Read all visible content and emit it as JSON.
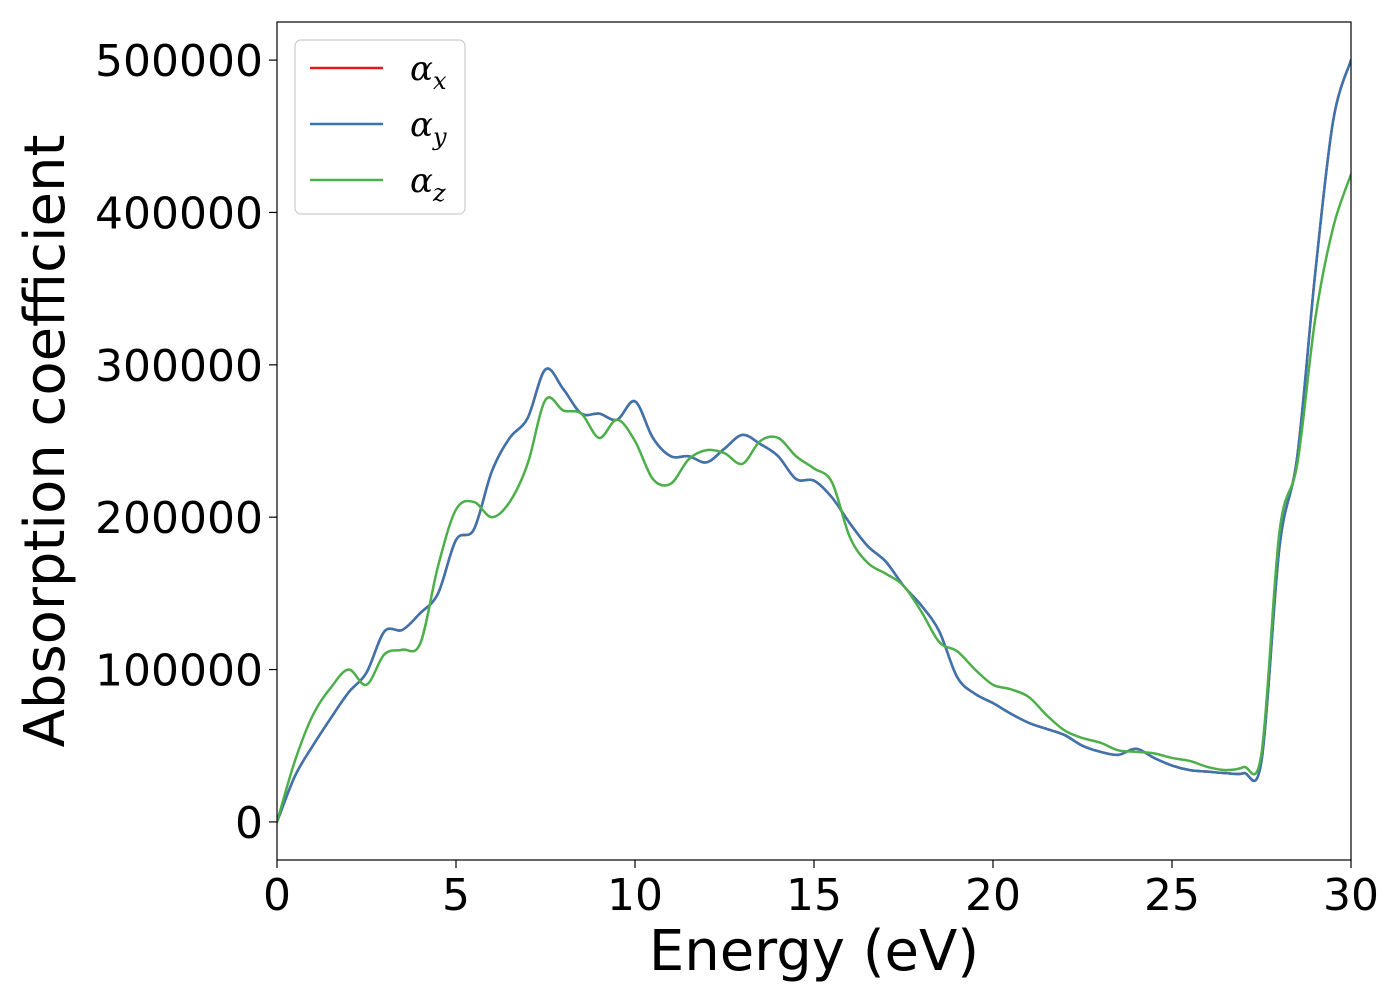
{
  "chart_data": {
    "type": "line",
    "xlabel": "Energy (eV)",
    "ylabel": "Absorption coefficient",
    "xlim": [
      0,
      30
    ],
    "ylim": [
      -25000,
      525000
    ],
    "xticks": [
      0,
      5,
      10,
      15,
      20,
      25,
      30
    ],
    "xtick_labels": [
      "0",
      "5",
      "10",
      "15",
      "20",
      "25",
      "30"
    ],
    "yticks": [
      0,
      100000,
      200000,
      300000,
      400000,
      500000
    ],
    "ytick_labels": [
      "0",
      "100000",
      "200000",
      "300000",
      "400000",
      "500000"
    ],
    "grid": false,
    "legend": "top-left",
    "series": [
      {
        "name": "αx",
        "label_base": "α",
        "label_sub": "x",
        "color": "#e41a1c",
        "x": [
          0,
          0.5,
          1,
          1.5,
          2,
          2.5,
          3,
          3.5,
          4,
          4.5,
          5,
          5.5,
          6,
          6.5,
          7,
          7.5,
          8,
          8.5,
          9,
          9.5,
          10,
          10.5,
          11,
          11.5,
          12,
          12.5,
          13,
          13.5,
          14,
          14.5,
          15,
          15.5,
          16,
          16.5,
          17,
          17.5,
          18,
          18.5,
          19,
          19.5,
          20,
          20.5,
          21,
          21.5,
          22,
          22.5,
          23,
          23.5,
          24,
          24.5,
          25,
          25.5,
          26,
          26.5,
          27,
          27.5,
          28,
          28.5,
          29,
          29.5,
          30
        ],
        "y": [
          0,
          30000,
          50000,
          68000,
          85000,
          98000,
          125000,
          126000,
          137000,
          150000,
          185000,
          192000,
          230000,
          252000,
          265000,
          297000,
          284000,
          268000,
          268000,
          264000,
          276000,
          252000,
          240000,
          240000,
          236000,
          245000,
          254000,
          248000,
          240000,
          225000,
          224000,
          213000,
          196000,
          181000,
          171000,
          155000,
          142000,
          125000,
          95000,
          84000,
          78000,
          71000,
          65000,
          61000,
          57000,
          50000,
          46000,
          44000,
          48000,
          42000,
          37000,
          34000,
          33000,
          32000,
          32000,
          40000,
          180000,
          240000,
          360000,
          460000,
          500000
        ]
      },
      {
        "name": "αy",
        "label_base": "α",
        "label_sub": "y",
        "color": "#3b75af",
        "x": [
          0,
          0.5,
          1,
          1.5,
          2,
          2.5,
          3,
          3.5,
          4,
          4.5,
          5,
          5.5,
          6,
          6.5,
          7,
          7.5,
          8,
          8.5,
          9,
          9.5,
          10,
          10.5,
          11,
          11.5,
          12,
          12.5,
          13,
          13.5,
          14,
          14.5,
          15,
          15.5,
          16,
          16.5,
          17,
          17.5,
          18,
          18.5,
          19,
          19.5,
          20,
          20.5,
          21,
          21.5,
          22,
          22.5,
          23,
          23.5,
          24,
          24.5,
          25,
          25.5,
          26,
          26.5,
          27,
          27.5,
          28,
          28.5,
          29,
          29.5,
          30
        ],
        "y": [
          0,
          30000,
          50000,
          68000,
          85000,
          98000,
          125000,
          126000,
          137000,
          150000,
          185000,
          192000,
          230000,
          252000,
          265000,
          297000,
          284000,
          268000,
          268000,
          264000,
          276000,
          252000,
          240000,
          240000,
          236000,
          245000,
          254000,
          248000,
          240000,
          225000,
          224000,
          213000,
          196000,
          181000,
          171000,
          155000,
          142000,
          125000,
          95000,
          84000,
          78000,
          71000,
          65000,
          61000,
          57000,
          50000,
          46000,
          44000,
          48000,
          42000,
          37000,
          34000,
          33000,
          32000,
          32000,
          40000,
          180000,
          240000,
          360000,
          460000,
          500000
        ]
      },
      {
        "name": "αz",
        "label_base": "α",
        "label_sub": "z",
        "color": "#4daf4a",
        "x": [
          0,
          0.5,
          1,
          1.5,
          2,
          2.5,
          3,
          3.5,
          4,
          4.5,
          5,
          5.5,
          6,
          6.5,
          7,
          7.5,
          8,
          8.5,
          9,
          9.5,
          10,
          10.5,
          11,
          11.5,
          12,
          12.5,
          13,
          13.5,
          14,
          14.5,
          15,
          15.5,
          16,
          16.5,
          17,
          17.5,
          18,
          18.5,
          19,
          19.5,
          20,
          20.5,
          21,
          21.5,
          22,
          22.5,
          23,
          23.5,
          24,
          24.5,
          25,
          25.5,
          26,
          26.5,
          27,
          27.5,
          28,
          28.5,
          29,
          29.5,
          30
        ],
        "y": [
          0,
          40000,
          70000,
          88000,
          100000,
          90000,
          110000,
          113000,
          117000,
          168000,
          205000,
          210000,
          200000,
          210000,
          235000,
          277000,
          270000,
          268000,
          252000,
          264000,
          250000,
          225000,
          222000,
          238000,
          244000,
          242000,
          235000,
          250000,
          252000,
          240000,
          232000,
          223000,
          187000,
          170000,
          163000,
          155000,
          138000,
          118000,
          112000,
          100000,
          90000,
          87000,
          82000,
          70000,
          60000,
          55000,
          52000,
          47000,
          46000,
          45000,
          42000,
          40000,
          36000,
          34000,
          36000,
          45000,
          190000,
          235000,
          330000,
          390000,
          425000
        ]
      }
    ]
  }
}
